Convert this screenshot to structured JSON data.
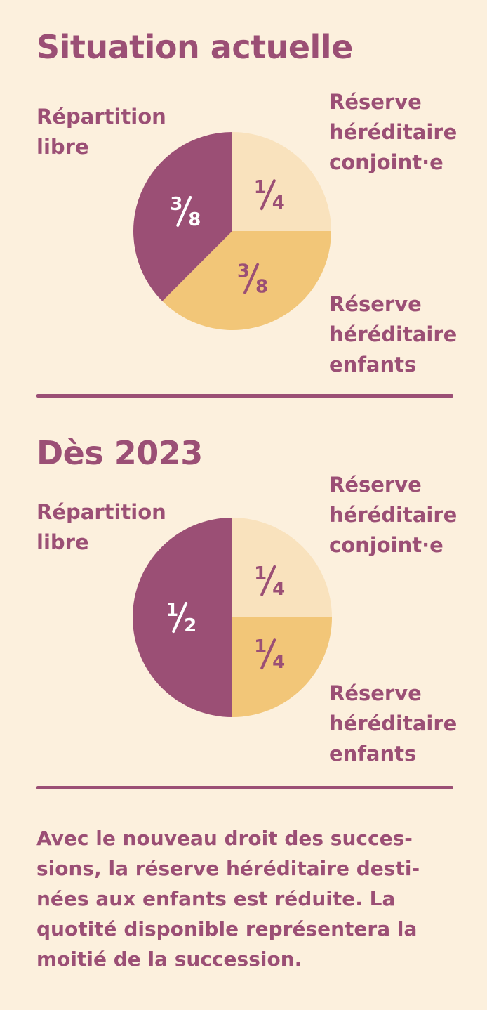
{
  "colors": {
    "background": "#fcf0dd",
    "text": "#9b4f75",
    "libre": "#9b4f75",
    "conjoint": "#f9e2bd",
    "enfants": "#f2c678",
    "label_on_dark": "#ffffff",
    "label_on_light": "#9b4f75"
  },
  "sections": [
    {
      "title": "Situation actuelle",
      "label_libre": "Répartition\nlibre",
      "label_conjoint": "Réserve\nhéréditaire\nconjoint·e",
      "label_enfants": "Réserve\nhéréditaire\nenfants"
    },
    {
      "title": "Dès 2023",
      "label_libre": "Répartition\nlibre",
      "label_conjoint": "Réserve\nhéréditaire\nconjoint·e",
      "label_enfants": "Réserve\nhéréditaire\nenfants"
    }
  ],
  "chart_data": [
    {
      "type": "pie",
      "title": "Situation actuelle",
      "slices": [
        {
          "name": "Réserve héréditaire conjoint·e",
          "value": 0.25,
          "label": "1/4",
          "color": "#f9e2bd"
        },
        {
          "name": "Réserve héréditaire enfants",
          "value": 0.375,
          "label": "3/8",
          "color": "#f2c678"
        },
        {
          "name": "Répartition libre",
          "value": 0.375,
          "label": "3/8",
          "color": "#9b4f75"
        }
      ]
    },
    {
      "type": "pie",
      "title": "Dès 2023",
      "slices": [
        {
          "name": "Réserve héréditaire conjoint·e",
          "value": 0.25,
          "label": "1/4",
          "color": "#f9e2bd"
        },
        {
          "name": "Réserve héréditaire enfants",
          "value": 0.25,
          "label": "1/4",
          "color": "#f2c678"
        },
        {
          "name": "Répartition libre",
          "value": 0.5,
          "label": "1/2",
          "color": "#9b4f75"
        }
      ]
    }
  ],
  "paragraph": "Avec le nouveau droit des succes­sions, la réserve héréditaire desti­nées aux enfants est réduite. La quotité disponible représentera la moitié de la succession."
}
